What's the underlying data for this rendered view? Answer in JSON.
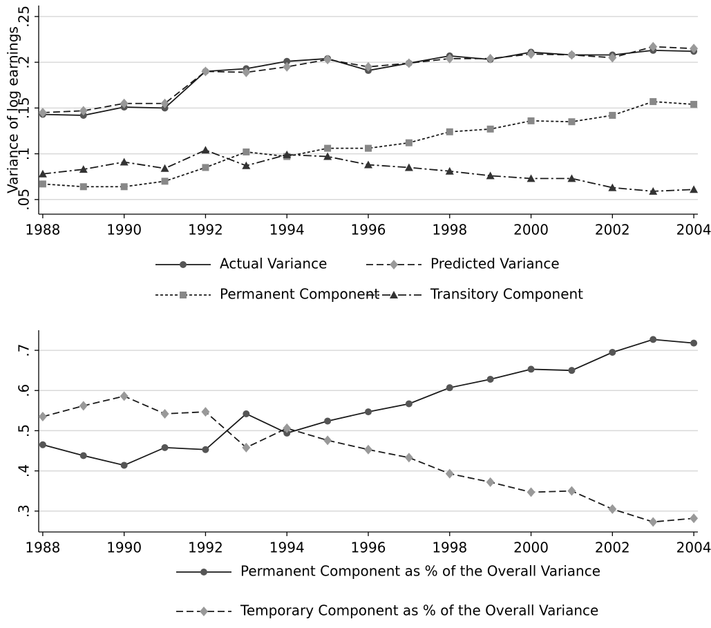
{
  "chart_data": [
    {
      "type": "line",
      "y_label": "Variance of log earnings",
      "x": [
        1988,
        1989,
        1990,
        1991,
        1992,
        1993,
        1994,
        1995,
        1996,
        1997,
        1998,
        1999,
        2000,
        2001,
        2002,
        2003,
        2004
      ],
      "xlim": [
        1987.9,
        2004.1
      ],
      "xticks": [
        1988,
        1990,
        1992,
        1994,
        1996,
        1998,
        2000,
        2002,
        2004
      ],
      "ylim": [
        0.034,
        0.262
      ],
      "yticks": [
        {
          "value": 0.05,
          "label": ".05"
        },
        {
          "value": 0.1,
          "label": ".1"
        },
        {
          "value": 0.15,
          "label": ".15"
        },
        {
          "value": 0.2,
          "label": ".2"
        },
        {
          "value": 0.25,
          "label": ".25"
        }
      ],
      "grid": true,
      "series": [
        {
          "name": "Actual Variance",
          "color": "#1a1a1a",
          "marker_color": "#555555",
          "marker": "circle",
          "dash": "solid",
          "values": [
            0.143,
            0.142,
            0.151,
            0.15,
            0.19,
            0.193,
            0.201,
            0.204,
            0.191,
            0.199,
            0.207,
            0.203,
            0.211,
            0.208,
            0.208,
            0.213,
            0.212
          ]
        },
        {
          "name": "Predicted Variance",
          "color": "#1a1a1a",
          "marker_color": "#999999",
          "marker": "diamond",
          "dash": "dashed",
          "values": [
            0.145,
            0.147,
            0.155,
            0.155,
            0.19,
            0.189,
            0.195,
            0.203,
            0.195,
            0.199,
            0.204,
            0.204,
            0.209,
            0.208,
            0.205,
            0.217,
            0.215
          ]
        },
        {
          "name": "Permanent Component",
          "color": "#1a1a1a",
          "marker_color": "#888888",
          "marker": "square",
          "dash": "dotted",
          "values": [
            0.067,
            0.064,
            0.064,
            0.07,
            0.085,
            0.102,
            0.097,
            0.106,
            0.106,
            0.112,
            0.124,
            0.127,
            0.136,
            0.135,
            0.142,
            0.157,
            0.154
          ]
        },
        {
          "name": "Transitory Component",
          "color": "#1a1a1a",
          "marker_color": "#333333",
          "marker": "triangle",
          "dash": "dashdot",
          "values": [
            0.078,
            0.083,
            0.091,
            0.084,
            0.104,
            0.087,
            0.099,
            0.097,
            0.088,
            0.085,
            0.081,
            0.076,
            0.073,
            0.073,
            0.063,
            0.059,
            0.061
          ]
        }
      ]
    },
    {
      "type": "line",
      "x": [
        1988,
        1989,
        1990,
        1991,
        1992,
        1993,
        1994,
        1995,
        1996,
        1997,
        1998,
        1999,
        2000,
        2001,
        2002,
        2003,
        2004
      ],
      "xlim": [
        1987.9,
        2004.1
      ],
      "xticks": [
        1988,
        1990,
        1992,
        1994,
        1996,
        1998,
        2000,
        2002,
        2004
      ],
      "ylim": [
        0.248,
        0.75
      ],
      "yticks": [
        {
          "value": 0.3,
          "label": ".3"
        },
        {
          "value": 0.4,
          "label": ".4"
        },
        {
          "value": 0.5,
          "label": ".5"
        },
        {
          "value": 0.6,
          "label": ".6"
        },
        {
          "value": 0.7,
          "label": ".7"
        }
      ],
      "grid": true,
      "series": [
        {
          "name": "Permanent Component as % of the Overall Variance",
          "color": "#1a1a1a",
          "marker_color": "#555555",
          "marker": "circle",
          "dash": "solid",
          "values": [
            0.465,
            0.438,
            0.414,
            0.458,
            0.453,
            0.542,
            0.494,
            0.524,
            0.547,
            0.567,
            0.607,
            0.628,
            0.653,
            0.65,
            0.695,
            0.727,
            0.718
          ]
        },
        {
          "name": "Temporary Component as % of the Overall Variance",
          "color": "#1a1a1a",
          "marker_color": "#999999",
          "marker": "diamond",
          "dash": "dashed",
          "values": [
            0.535,
            0.562,
            0.586,
            0.542,
            0.547,
            0.458,
            0.506,
            0.476,
            0.453,
            0.433,
            0.393,
            0.372,
            0.347,
            0.35,
            0.305,
            0.273,
            0.282
          ]
        }
      ]
    }
  ]
}
